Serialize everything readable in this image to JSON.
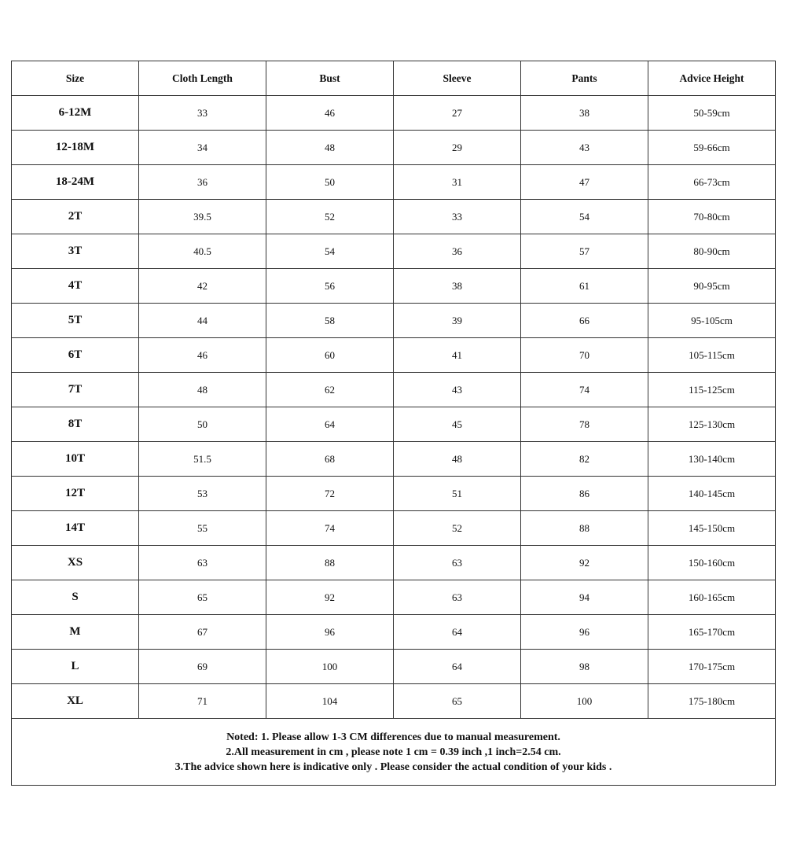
{
  "table": {
    "headers": [
      "Size",
      "Cloth Length",
      "Bust",
      "Sleeve",
      "Pants",
      "Advice Height"
    ],
    "rows": [
      [
        "6-12M",
        "33",
        "46",
        "27",
        "38",
        "50-59cm"
      ],
      [
        "12-18M",
        "34",
        "48",
        "29",
        "43",
        "59-66cm"
      ],
      [
        "18-24M",
        "36",
        "50",
        "31",
        "47",
        "66-73cm"
      ],
      [
        "2T",
        "39.5",
        "52",
        "33",
        "54",
        "70-80cm"
      ],
      [
        "3T",
        "40.5",
        "54",
        "36",
        "57",
        "80-90cm"
      ],
      [
        "4T",
        "42",
        "56",
        "38",
        "61",
        "90-95cm"
      ],
      [
        "5T",
        "44",
        "58",
        "39",
        "66",
        "95-105cm"
      ],
      [
        "6T",
        "46",
        "60",
        "41",
        "70",
        "105-115cm"
      ],
      [
        "7T",
        "48",
        "62",
        "43",
        "74",
        "115-125cm"
      ],
      [
        "8T",
        "50",
        "64",
        "45",
        "78",
        "125-130cm"
      ],
      [
        "10T",
        "51.5",
        "68",
        "48",
        "82",
        "130-140cm"
      ],
      [
        "12T",
        "53",
        "72",
        "51",
        "86",
        "140-145cm"
      ],
      [
        "14T",
        "55",
        "74",
        "52",
        "88",
        "145-150cm"
      ],
      [
        "XS",
        "63",
        "88",
        "63",
        "92",
        "150-160cm"
      ],
      [
        "S",
        "65",
        "92",
        "63",
        "94",
        "160-165cm"
      ],
      [
        "M",
        "67",
        "96",
        "64",
        "96",
        "165-170cm"
      ],
      [
        "L",
        "69",
        "100",
        "64",
        "98",
        "170-175cm"
      ],
      [
        "XL",
        "71",
        "104",
        "65",
        "100",
        "175-180cm"
      ]
    ]
  },
  "notes": [
    "Noted: 1. Please allow 1-3 CM differences due to manual measurement.",
    "2.All measurement in cm , please note 1 cm = 0.39 inch ,1 inch=2.54 cm.",
    "3.The advice shown here is indicative only . Please consider the actual condition of your kids ."
  ]
}
